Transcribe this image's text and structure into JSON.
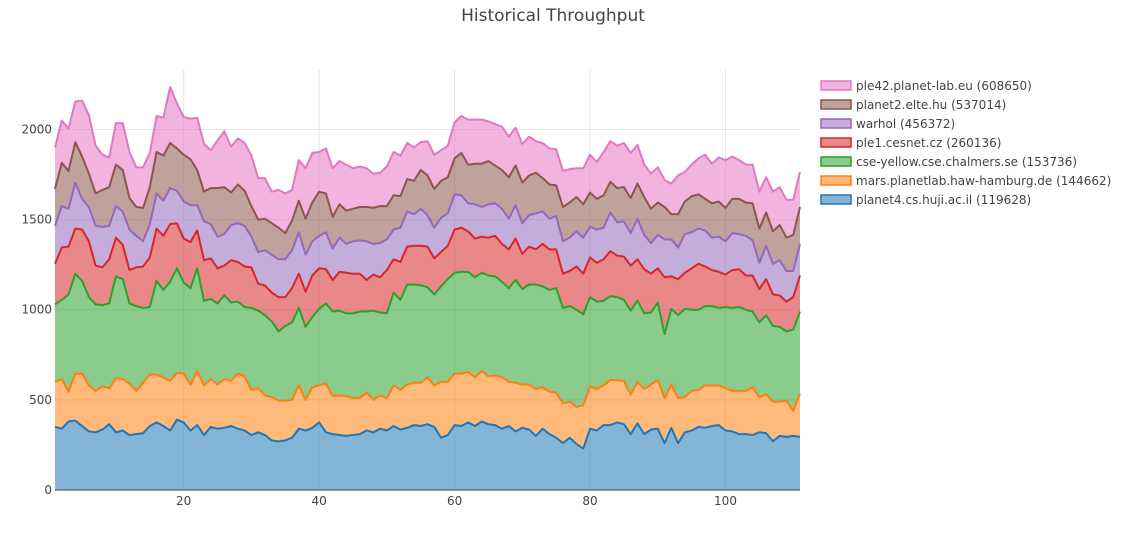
{
  "chart_data": {
    "type": "area",
    "stacked": true,
    "title": "Historical Throughput",
    "xlabel": "",
    "ylabel": "",
    "xlim": [
      1,
      111
    ],
    "ylim": [
      0,
      2330
    ],
    "xticks": [
      20,
      40,
      60,
      80,
      100
    ],
    "yticks": [
      0,
      500,
      1000,
      1500,
      2000
    ],
    "grid": true,
    "legend_position": "top-right",
    "x_start": 1,
    "series": [
      {
        "name": "planet4.cs.huji.ac.il (119628)",
        "color": "#1f77b4",
        "values": [
          350,
          340,
          380,
          385,
          355,
          325,
          320,
          335,
          365,
          320,
          330,
          305,
          310,
          315,
          355,
          375,
          355,
          330,
          390,
          375,
          330,
          360,
          305,
          350,
          340,
          345,
          355,
          340,
          330,
          305,
          320,
          305,
          275,
          270,
          275,
          290,
          340,
          330,
          345,
          375,
          320,
          310,
          305,
          300,
          305,
          310,
          330,
          320,
          340,
          330,
          355,
          335,
          345,
          360,
          355,
          365,
          350,
          290,
          305,
          360,
          355,
          375,
          355,
          380,
          365,
          360,
          340,
          355,
          325,
          345,
          335,
          300,
          340,
          310,
          290,
          260,
          290,
          255,
          230,
          340,
          330,
          360,
          360,
          375,
          365,
          310,
          370,
          310,
          335,
          340,
          260,
          345,
          260,
          320,
          330,
          350,
          345,
          355,
          360,
          330,
          325,
          310,
          310,
          305,
          320,
          315,
          270,
          300,
          295,
          300,
          295
        ]
      },
      {
        "name": "mars.planetlab.haw-hamburg.de (144662)",
        "color": "#ff7f0e",
        "values": [
          250,
          275,
          165,
          260,
          290,
          255,
          230,
          240,
          200,
          300,
          285,
          285,
          240,
          280,
          285,
          265,
          270,
          275,
          260,
          270,
          255,
          300,
          275,
          265,
          245,
          270,
          250,
          305,
          300,
          250,
          245,
          220,
          240,
          225,
          220,
          210,
          240,
          170,
          225,
          205,
          270,
          210,
          220,
          220,
          205,
          200,
          210,
          180,
          185,
          180,
          225,
          220,
          240,
          235,
          240,
          260,
          230,
          310,
          295,
          285,
          290,
          280,
          270,
          280,
          265,
          275,
          285,
          245,
          270,
          240,
          250,
          260,
          230,
          235,
          250,
          220,
          200,
          205,
          240,
          235,
          230,
          220,
          250,
          235,
          240,
          220,
          230,
          250,
          250,
          270,
          250,
          240,
          250,
          195,
          220,
          205,
          235,
          225,
          220,
          235,
          225,
          240,
          240,
          265,
          195,
          215,
          220,
          190,
          200,
          140,
          240
        ]
      },
      {
        "name": "cse-yellow.cse.chalmers.se (153736)",
        "color": "#2ca02c",
        "values": [
          430,
          440,
          540,
          555,
          515,
          490,
          480,
          450,
          470,
          565,
          555,
          445,
          470,
          415,
          375,
          520,
          485,
          550,
          580,
          505,
          535,
          570,
          470,
          445,
          450,
          465,
          435,
          400,
          385,
          455,
          430,
          445,
          420,
          385,
          415,
          430,
          430,
          405,
          390,
          425,
          445,
          470,
          470,
          460,
          470,
          480,
          450,
          495,
          460,
          470,
          515,
          500,
          555,
          545,
          540,
          500,
          505,
          530,
          570,
          560,
          565,
          555,
          555,
          545,
          560,
          550,
          530,
          520,
          570,
          530,
          555,
          580,
          560,
          565,
          580,
          530,
          530,
          540,
          505,
          495,
          485,
          470,
          465,
          460,
          450,
          465,
          450,
          420,
          400,
          430,
          355,
          420,
          460,
          490,
          450,
          445,
          440,
          440,
          430,
          450,
          460,
          465,
          450,
          420,
          415,
          440,
          420,
          415,
          385,
          450,
          455
        ]
      },
      {
        "name": "ple1.cesnet.cz (260136)",
        "color": "#d62728",
        "values": [
          225,
          290,
          265,
          250,
          285,
          310,
          215,
          210,
          245,
          215,
          190,
          185,
          215,
          230,
          275,
          290,
          300,
          320,
          250,
          245,
          255,
          210,
          225,
          225,
          195,
          165,
          235,
          220,
          225,
          225,
          150,
          165,
          160,
          190,
          160,
          190,
          190,
          195,
          230,
          225,
          190,
          175,
          215,
          225,
          220,
          210,
          175,
          200,
          195,
          240,
          185,
          210,
          210,
          215,
          220,
          225,
          200,
          190,
          185,
          240,
          245,
          225,
          215,
          200,
          210,
          225,
          210,
          215,
          230,
          195,
          210,
          195,
          235,
          225,
          215,
          190,
          195,
          240,
          225,
          220,
          215,
          230,
          250,
          230,
          240,
          250,
          230,
          245,
          215,
          190,
          315,
          180,
          200,
          200,
          230,
          255,
          220,
          200,
          200,
          180,
          210,
          210,
          190,
          200,
          185,
          200,
          175,
          175,
          165,
          180,
          200
        ]
      },
      {
        "name": "warhol (456372)",
        "color": "#9467bd",
        "values": [
          210,
          230,
          210,
          255,
          170,
          190,
          220,
          225,
          185,
          175,
          185,
          225,
          175,
          140,
          185,
          195,
          195,
          200,
          180,
          205,
          205,
          140,
          215,
          190,
          175,
          175,
          195,
          215,
          225,
          170,
          175,
          195,
          210,
          210,
          210,
          210,
          230,
          205,
          190,
          180,
          205,
          175,
          190,
          160,
          180,
          185,
          215,
          170,
          190,
          170,
          165,
          190,
          195,
          175,
          205,
          175,
          170,
          190,
          180,
          195,
          180,
          155,
          190,
          165,
          185,
          180,
          195,
          170,
          185,
          170,
          175,
          200,
          180,
          170,
          185,
          180,
          185,
          195,
          200,
          170,
          185,
          175,
          215,
          185,
          195,
          180,
          225,
          190,
          170,
          185,
          210,
          205,
          175,
          215,
          200,
          195,
          200,
          180,
          195,
          185,
          205,
          195,
          220,
          195,
          145,
          185,
          170,
          195,
          170,
          145,
          175
        ]
      },
      {
        "name": "planet2.elte.hu (537014)",
        "color": "#8c564b",
        "values": [
          205,
          240,
          210,
          225,
          235,
          185,
          180,
          205,
          215,
          230,
          230,
          175,
          160,
          185,
          205,
          230,
          250,
          250,
          235,
          260,
          255,
          195,
          165,
          200,
          270,
          260,
          180,
          215,
          195,
          170,
          180,
          175,
          175,
          175,
          145,
          165,
          175,
          200,
          215,
          245,
          215,
          175,
          185,
          185,
          180,
          185,
          190,
          200,
          205,
          185,
          190,
          175,
          180,
          185,
          215,
          220,
          215,
          205,
          200,
          200,
          235,
          215,
          225,
          240,
          240,
          210,
          215,
          230,
          220,
          225,
          220,
          225,
          185,
          190,
          170,
          190,
          195,
          190,
          185,
          190,
          170,
          180,
          170,
          190,
          190,
          195,
          195,
          210,
          190,
          180,
          180,
          140,
          185,
          180,
          200,
          190,
          175,
          190,
          195,
          185,
          190,
          195,
          185,
          205,
          190,
          185,
          180,
          195,
          185,
          200,
          205
        ]
      },
      {
        "name": "ple42.planet-lab.eu (608650)",
        "color": "#e377c2",
        "values": [
          230,
          235,
          235,
          225,
          310,
          325,
          265,
          195,
          165,
          230,
          260,
          255,
          220,
          225,
          190,
          200,
          210,
          310,
          250,
          210,
          225,
          290,
          265,
          210,
          265,
          310,
          255,
          255,
          265,
          280,
          230,
          225,
          175,
          210,
          220,
          170,
          225,
          280,
          275,
          220,
          250,
          270,
          240,
          255,
          225,
          225,
          215,
          190,
          185,
          220,
          240,
          225,
          200,
          185,
          155,
          190,
          190,
          170,
          175,
          200,
          205,
          250,
          245,
          245,
          220,
          230,
          240,
          225,
          210,
          215,
          215,
          175,
          195,
          200,
          200,
          200,
          185,
          160,
          200,
          210,
          205,
          240,
          225,
          235,
          245,
          250,
          215,
          180,
          195,
          195,
          150,
          170,
          215,
          165,
          175,
          200,
          245,
          220,
          245,
          265,
          235,
          215,
          210,
          215,
          205,
          195,
          220,
          210,
          210,
          195,
          195
        ]
      }
    ]
  }
}
